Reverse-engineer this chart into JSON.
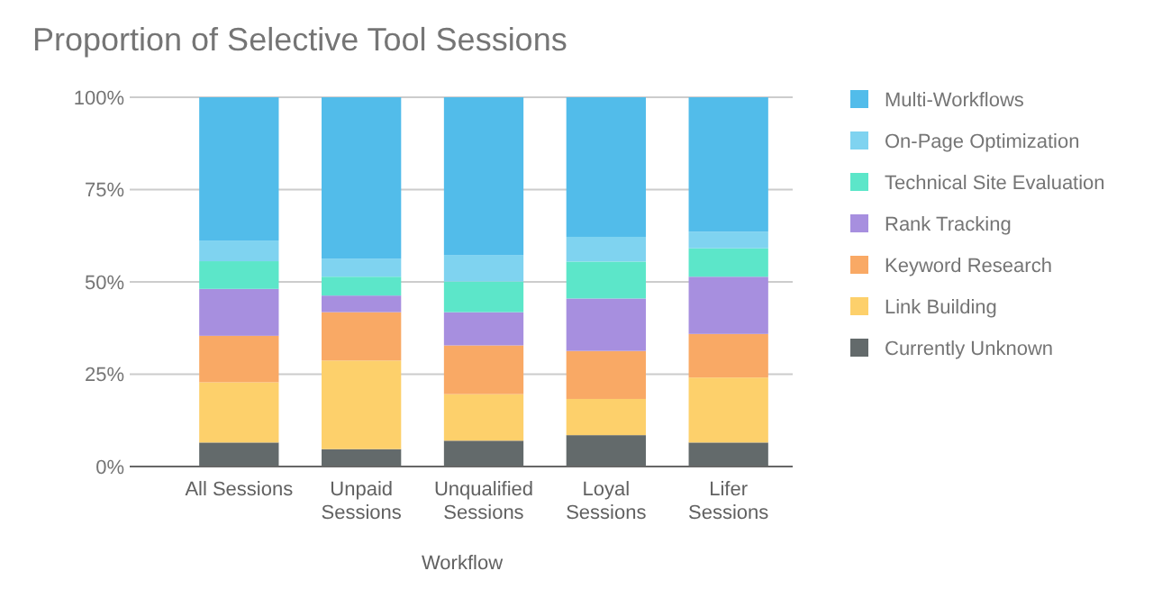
{
  "chart_data": {
    "type": "bar",
    "stacked": true,
    "title": "Proportion of Selective Tool Sessions",
    "xlabel": "Workflow",
    "categories": [
      "All Sessions",
      "Unpaid Sessions",
      "Unqualified Sessions",
      "Loyal Sessions",
      "Lifer Sessions"
    ],
    "series": [
      {
        "name": "Currently Unknown",
        "color": "#636a6b",
        "values": [
          6.5,
          4.7,
          7.0,
          8.5,
          6.5
        ]
      },
      {
        "name": "Link Building",
        "color": "#fdd06b",
        "values": [
          16.3,
          24.0,
          12.6,
          9.8,
          17.6
        ]
      },
      {
        "name": "Keyword Research",
        "color": "#f9a965",
        "values": [
          12.6,
          13.1,
          13.2,
          13.0,
          11.8
        ]
      },
      {
        "name": "Rank Tracking",
        "color": "#a78fdf",
        "values": [
          12.7,
          4.5,
          9.0,
          14.2,
          15.5
        ]
      },
      {
        "name": "Technical Site Evaluation",
        "color": "#5ce6c9",
        "values": [
          7.5,
          5.1,
          8.3,
          10.0,
          7.7
        ]
      },
      {
        "name": "On-Page Optimization",
        "color": "#7fd3f0",
        "values": [
          5.6,
          4.9,
          7.2,
          6.7,
          4.5
        ]
      },
      {
        "name": "Multi-Workflows",
        "color": "#52bcea",
        "values": [
          38.8,
          43.7,
          42.7,
          37.8,
          36.4
        ]
      }
    ],
    "ylim": [
      0,
      100
    ],
    "yticks": [
      {
        "value": 0,
        "label": "0%"
      },
      {
        "value": 25,
        "label": "25%"
      },
      {
        "value": 50,
        "label": "50%"
      },
      {
        "value": 75,
        "label": "75%"
      },
      {
        "value": 100,
        "label": "100%"
      }
    ],
    "grid": "y",
    "legend": "right"
  }
}
